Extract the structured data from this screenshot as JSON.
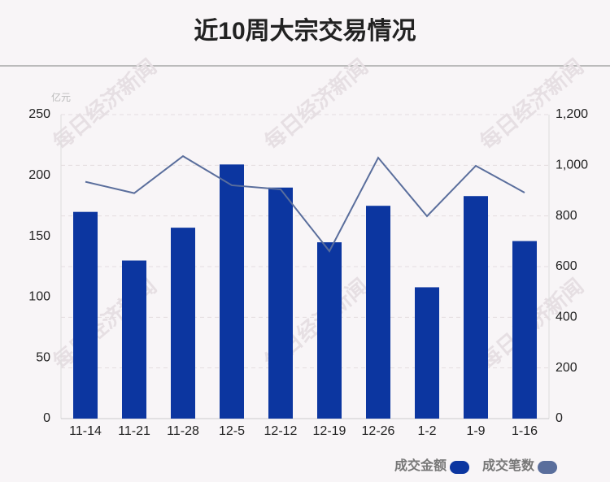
{
  "chart_data": {
    "type": "bar",
    "title": "近10周大宗交易情况",
    "y_unit": "亿元",
    "watermark": "每日经济新闻",
    "categories": [
      "11-14",
      "11-21",
      "11-28",
      "12-5",
      "12-12",
      "12-19",
      "12-26",
      "1-2",
      "1-9",
      "1-16"
    ],
    "series": [
      {
        "name": "成交金额",
        "color": "#0c36a0",
        "type": "bar",
        "values": [
          170,
          130,
          157,
          209,
          190,
          145,
          175,
          108,
          183,
          146
        ]
      },
      {
        "name": "成交笔数",
        "color": "#5a6e9c",
        "type": "line",
        "axis": "y2",
        "values": [
          935,
          890,
          1036,
          921,
          905,
          661,
          1030,
          799,
          998,
          892
        ]
      }
    ],
    "ylim": [
      0,
      250
    ],
    "yticks": [
      0,
      50,
      100,
      150,
      200,
      250
    ],
    "y2lim": [
      0,
      1200
    ],
    "y2ticks": [
      0,
      200,
      400,
      600,
      800,
      {
        "value": 1000,
        "label": "1,000"
      },
      {
        "value": 1200,
        "label": "1,200"
      }
    ],
    "grid": true,
    "legend": "bottom-right"
  }
}
